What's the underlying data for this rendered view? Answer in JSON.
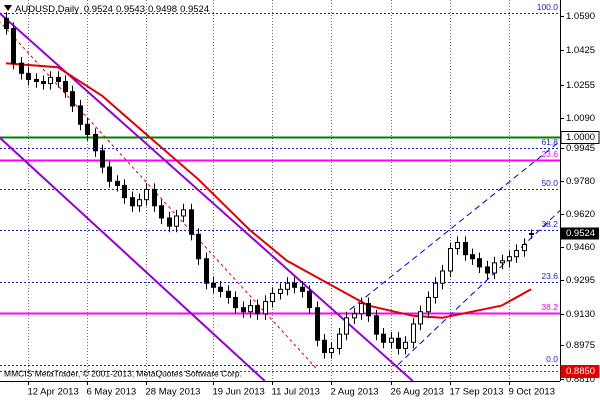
{
  "chart_data": {
    "type": "candlestick",
    "symbol_header": "AUDUSD,Daily",
    "copyright": "MMCIS MetaTrader, © 2001-2013, MetaQuotes Software Corp.",
    "bull_color": "#ffffff",
    "bear_color": "#000000",
    "candle_outline": "#000000",
    "open": [
      1.058,
      1.053,
      1.036,
      1.031,
      1.028,
      1.027,
      1.026,
      1.029,
      1.027,
      1.022,
      1.015,
      1.006,
      1.001,
      0.993,
      0.985,
      0.978,
      0.976,
      0.97,
      0.966,
      0.969,
      0.974,
      0.966,
      0.96,
      0.956,
      0.961,
      0.964,
      0.952,
      0.94,
      0.928,
      0.926,
      0.924,
      0.921,
      0.916,
      0.914,
      0.917,
      0.913,
      0.919,
      0.923,
      0.925,
      0.928,
      0.926,
      0.924,
      0.916,
      0.9,
      0.894,
      0.896,
      0.903,
      0.911,
      0.913,
      0.918,
      0.912,
      0.903,
      0.899,
      0.901,
      0.896,
      0.899,
      0.908,
      0.914,
      0.921,
      0.928,
      0.934,
      0.945,
      0.948,
      0.942,
      0.94,
      0.936,
      0.933,
      0.938,
      0.939,
      0.941,
      0.944,
      0.9524
    ],
    "high": [
      1.061,
      1.056,
      1.039,
      1.034,
      1.031,
      1.03,
      1.032,
      1.032,
      1.03,
      1.025,
      1.018,
      1.009,
      1.004,
      0.996,
      0.988,
      0.981,
      0.979,
      0.973,
      0.972,
      0.977,
      0.977,
      0.969,
      0.963,
      0.964,
      0.967,
      0.967,
      0.955,
      0.943,
      0.931,
      0.929,
      0.927,
      0.924,
      0.919,
      0.92,
      0.92,
      0.922,
      0.926,
      0.928,
      0.931,
      0.931,
      0.929,
      0.927,
      0.919,
      0.903,
      0.899,
      0.906,
      0.914,
      0.916,
      0.921,
      0.921,
      0.915,
      0.906,
      0.904,
      0.904,
      0.902,
      0.911,
      0.917,
      0.924,
      0.931,
      0.937,
      0.948,
      0.951,
      0.951,
      0.945,
      0.943,
      0.939,
      0.941,
      0.942,
      0.944,
      0.947,
      0.95,
      0.9543
    ],
    "low": [
      1.05,
      1.033,
      1.028,
      1.025,
      1.024,
      1.023,
      1.023,
      1.024,
      1.019,
      1.012,
      1.003,
      0.998,
      0.99,
      0.982,
      0.975,
      0.973,
      0.967,
      0.963,
      0.963,
      0.966,
      0.963,
      0.957,
      0.953,
      0.953,
      0.958,
      0.949,
      0.937,
      0.925,
      0.923,
      0.921,
      0.918,
      0.913,
      0.911,
      0.911,
      0.91,
      0.91,
      0.916,
      0.92,
      0.922,
      0.923,
      0.921,
      0.913,
      0.897,
      0.891,
      0.891,
      0.893,
      0.9,
      0.908,
      0.91,
      0.909,
      0.9,
      0.896,
      0.896,
      0.893,
      0.893,
      0.896,
      0.905,
      0.911,
      0.918,
      0.925,
      0.931,
      0.942,
      0.939,
      0.937,
      0.933,
      0.93,
      0.93,
      0.935,
      0.936,
      0.938,
      0.941,
      0.9498
    ],
    "close": [
      1.053,
      1.036,
      1.031,
      1.028,
      1.027,
      1.026,
      1.029,
      1.027,
      1.022,
      1.015,
      1.006,
      1.001,
      0.993,
      0.985,
      0.978,
      0.976,
      0.97,
      0.966,
      0.969,
      0.974,
      0.966,
      0.96,
      0.956,
      0.961,
      0.964,
      0.952,
      0.94,
      0.928,
      0.926,
      0.924,
      0.921,
      0.916,
      0.914,
      0.917,
      0.913,
      0.919,
      0.923,
      0.925,
      0.928,
      0.926,
      0.924,
      0.916,
      0.9,
      0.894,
      0.896,
      0.903,
      0.911,
      0.913,
      0.918,
      0.912,
      0.903,
      0.899,
      0.901,
      0.896,
      0.899,
      0.908,
      0.914,
      0.921,
      0.928,
      0.934,
      0.945,
      0.948,
      0.942,
      0.94,
      0.936,
      0.933,
      0.938,
      0.939,
      0.941,
      0.944,
      0.947,
      0.9524
    ],
    "xlim": [
      -0.8,
      74.9
    ],
    "ylim": [
      0.88,
      1.067
    ],
    "grid": "x",
    "xticks": [
      {
        "value": 3,
        "label": "12 Apr 2013"
      },
      {
        "value": 11,
        "label": "6 May 2013"
      },
      {
        "value": 19,
        "label": "28 May 2013"
      },
      {
        "value": 28,
        "label": "19 Jun 2013"
      },
      {
        "value": 36,
        "label": "11 Jul 2013"
      },
      {
        "value": 44,
        "label": "2 Aug 2013"
      },
      {
        "value": 52,
        "label": "26 Aug 2013"
      },
      {
        "value": 60,
        "label": "17 Sep 2013"
      },
      {
        "value": 68,
        "label": "9 Oct 2013"
      }
    ],
    "yticks": [
      {
        "value": 1.059,
        "label": "1.0590"
      },
      {
        "value": 1.0425,
        "label": "1.0425"
      },
      {
        "value": 1.0255,
        "label": "1.0255"
      },
      {
        "value": 1.009,
        "label": "1.0090"
      },
      {
        "value": 0.9945,
        "label": "0.9945"
      },
      {
        "value": 0.978,
        "label": "0.9780"
      },
      {
        "value": 0.962,
        "label": "0.9620"
      },
      {
        "value": 0.946,
        "label": "0.9460"
      },
      {
        "value": 0.9295,
        "label": "0.9295"
      },
      {
        "value": 0.913,
        "label": "0.9130"
      },
      {
        "value": 0.8975,
        "label": "0.8975"
      },
      {
        "value": 0.881,
        "label": "0.8810"
      }
    ],
    "moving_average": {
      "color": "#e00000",
      "x": [
        0,
        7,
        13,
        19,
        26,
        33,
        38,
        44,
        49,
        55,
        59,
        63,
        67,
        71
      ],
      "values": [
        1.036,
        1.034,
        1.02,
        1.001,
        0.979,
        0.954,
        0.939,
        0.927,
        0.917,
        0.912,
        0.911,
        0.914,
        0.917,
        0.925
      ]
    },
    "hlines": [
      {
        "value": 1.0,
        "color": "#008000",
        "width": 2,
        "dash": "none",
        "label": "1.0000",
        "label_style": "axis-box"
      },
      {
        "value": 0.9885,
        "color": "#ff00ff",
        "width": 2,
        "dash": "none",
        "label": "23.6",
        "label_style": "inline"
      },
      {
        "value": 0.9134,
        "color": "#ff00ff",
        "width": 2,
        "dash": "none",
        "label": "38.2",
        "label_style": "inline"
      },
      {
        "value": 0.885,
        "color": "#e00000",
        "width": 1,
        "dash": "2,2",
        "label": "0.8850",
        "label_style": "axis-box"
      }
    ],
    "fib_color": "#1e1ec8",
    "fib_levels": [
      {
        "value": 1.0606,
        "label": "100.0"
      },
      {
        "value": 0.9946,
        "label": "61.8"
      },
      {
        "value": 0.9743,
        "label": "50.0"
      },
      {
        "value": 0.9539,
        "label": "38.2"
      },
      {
        "value": 0.9287,
        "label": "23.6"
      },
      {
        "value": 0.8879,
        "label": "0.0"
      }
    ],
    "trendlines": [
      {
        "color": "#9400d3",
        "width": 2,
        "dash": "none",
        "x": [
          -1,
          55
        ],
        "values": [
          1.061,
          0.88
        ]
      },
      {
        "color": "#9400d3",
        "width": 2,
        "dash": "none",
        "x": [
          -1,
          35
        ],
        "values": [
          1.0,
          0.88
        ]
      },
      {
        "color": "#e00000",
        "width": 1,
        "dash": "3,3",
        "x": [
          -1,
          42
        ],
        "values": [
          1.057,
          0.886
        ]
      },
      {
        "color": "#0000cd",
        "width": 1,
        "dash": "6,4",
        "x": [
          53,
          75
        ],
        "values": [
          0.888,
          0.964
        ]
      },
      {
        "color": "#0000cd",
        "width": 1,
        "dash": "6,4",
        "x": [
          46.5,
          75
        ],
        "values": [
          0.915,
          0.998
        ]
      }
    ]
  }
}
